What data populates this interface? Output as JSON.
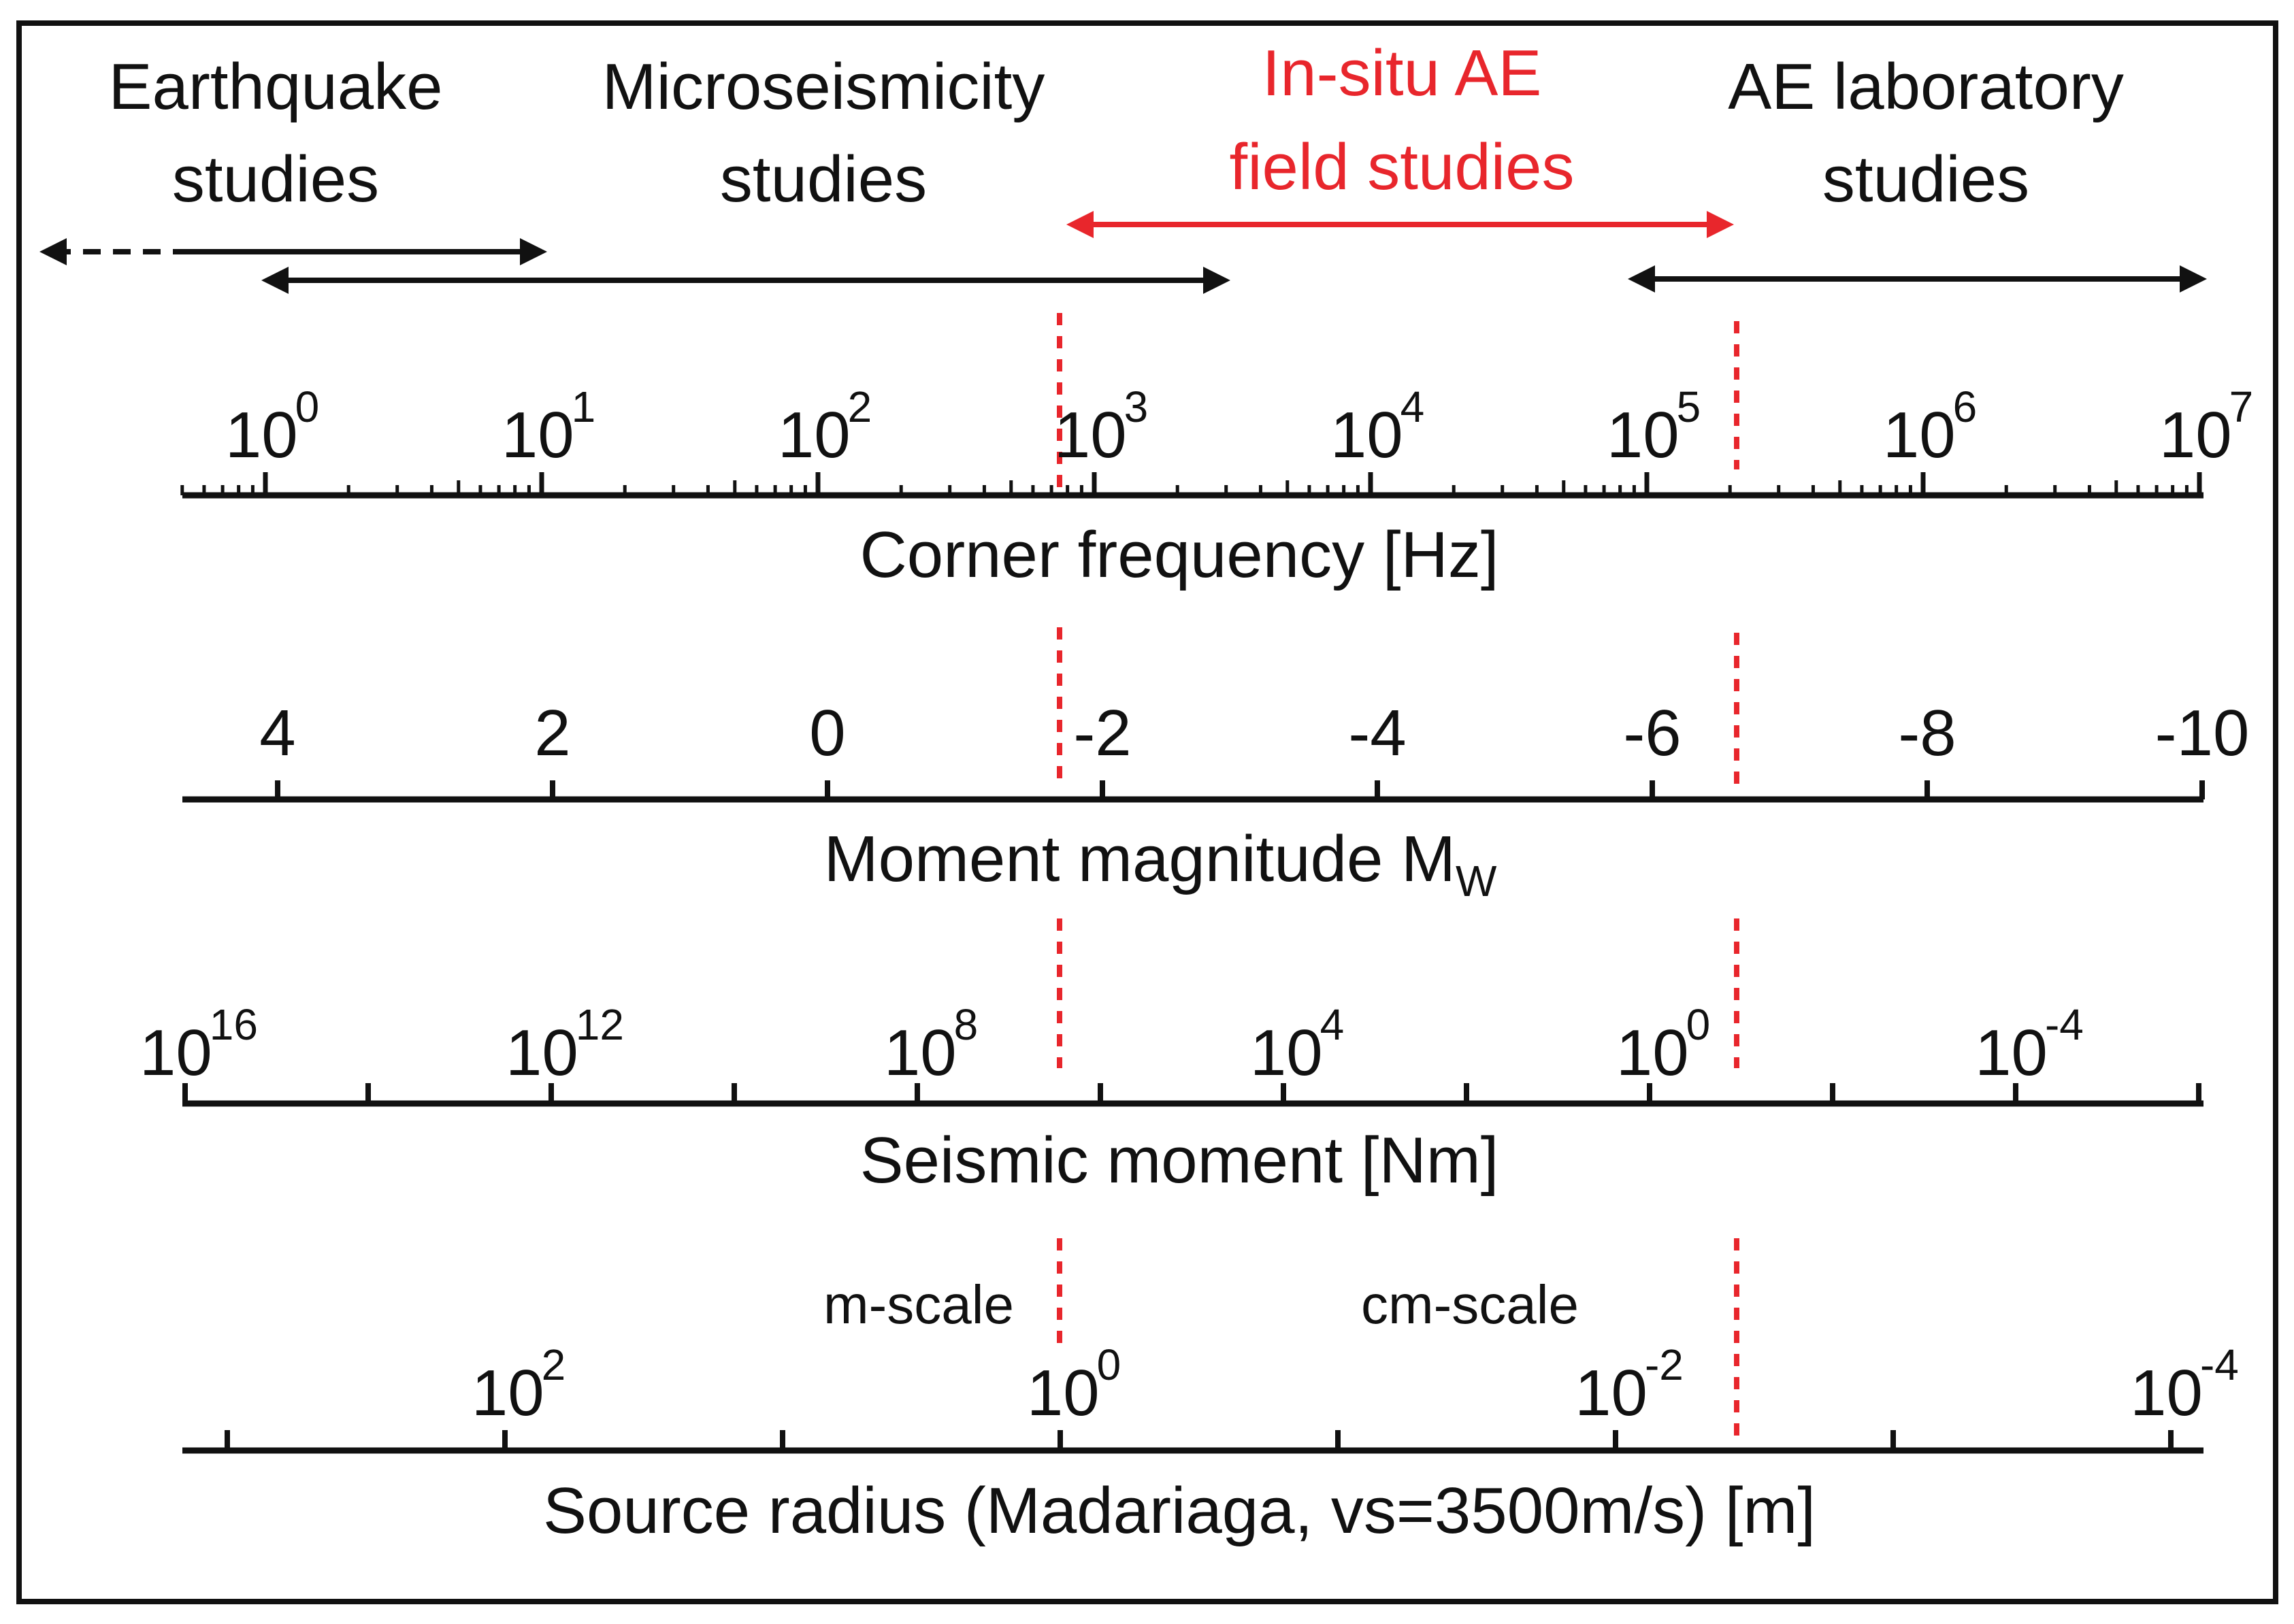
{
  "colors": {
    "ink": "#111111",
    "accent": "#e8262c",
    "frame": "#111111",
    "background": "#ffffff"
  },
  "studies": {
    "earthquake": [
      "Earthquake",
      "studies"
    ],
    "micro": [
      "Microseismicity",
      "studies"
    ],
    "insitu": [
      "In-situ AE",
      "field studies"
    ],
    "lab": [
      "AE laboratory",
      "studies"
    ]
  },
  "axes": {
    "corner_frequency": {
      "caption": "Corner frequency [Hz]",
      "base": "10",
      "exponents": [
        "0",
        "1",
        "2",
        "3",
        "4",
        "5",
        "6",
        "7"
      ]
    },
    "moment_magnitude": {
      "caption_main": "Moment magnitude M",
      "caption_sub": "W",
      "labels": [
        "4",
        "2",
        "0",
        "-2",
        "-4",
        "-6",
        "-8",
        "-10"
      ]
    },
    "seismic_moment": {
      "caption": "Seismic moment [Nm]",
      "base": "10",
      "exponents": [
        "16",
        "12",
        "8",
        "4",
        "0",
        "-4"
      ]
    },
    "source_radius": {
      "caption": "Source radius (Madariaga, vs=3500m/s) [m]",
      "base": "10",
      "exponents": [
        "2",
        "0",
        "-2",
        "-4"
      ],
      "scale_notes": [
        "m-scale",
        "cm-scale"
      ]
    }
  }
}
